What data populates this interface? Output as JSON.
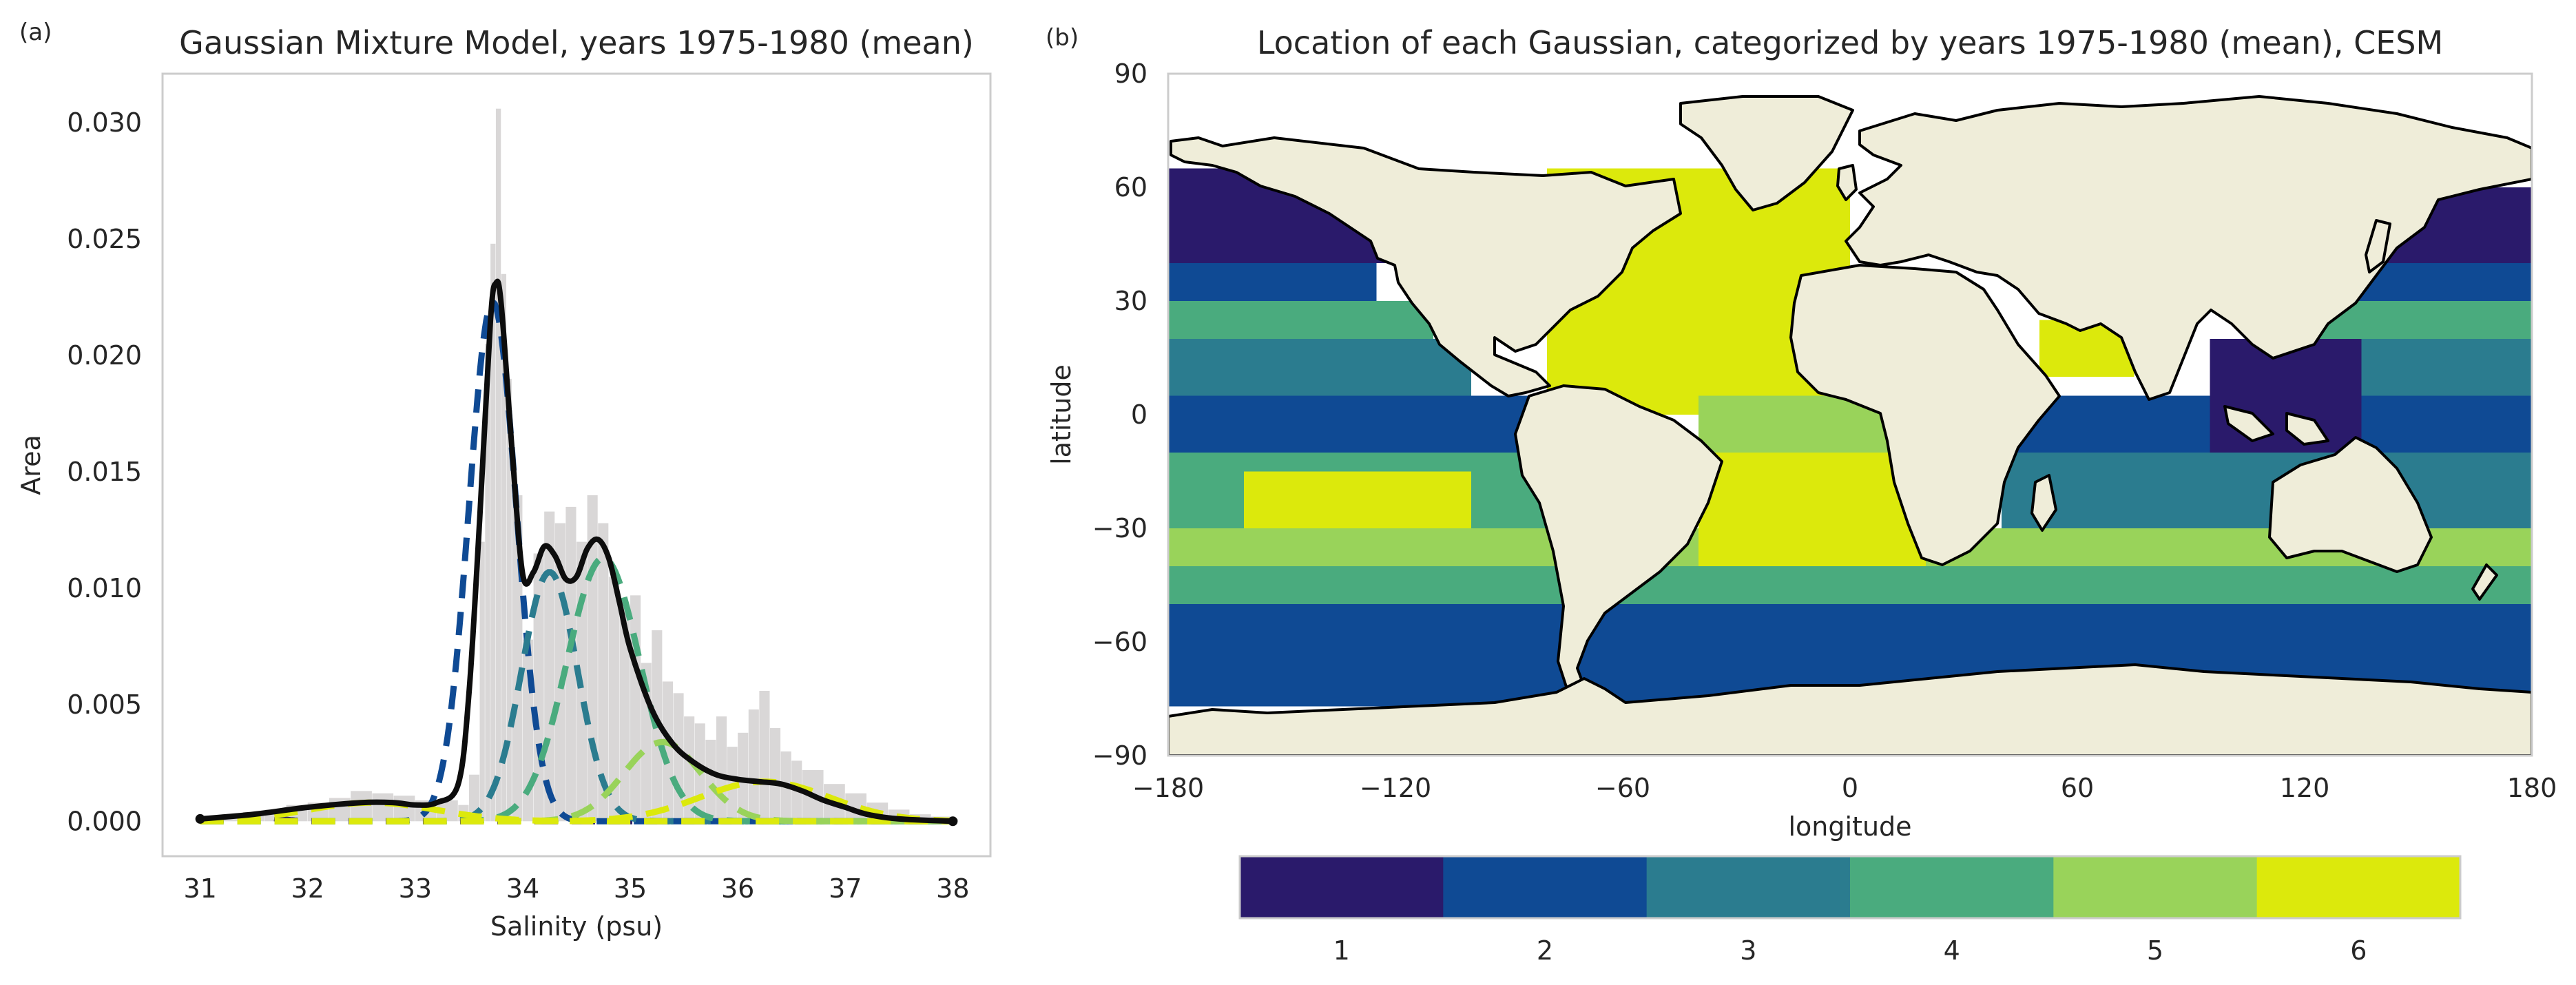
{
  "chart_data": [
    {
      "type": "line",
      "panel_label": "(a)",
      "title": "Gaussian Mixture Model, years 1975-1980 (mean)",
      "xlabel": "Salinity (psu)",
      "ylabel": "Area",
      "xlim": [
        30.65,
        38.35
      ],
      "ylim": [
        -0.0015,
        0.0321
      ],
      "xticks": [
        31,
        32,
        33,
        34,
        35,
        36,
        37,
        38
      ],
      "yticks": [
        0.0,
        0.005,
        0.01,
        0.015,
        0.02,
        0.025,
        0.03
      ],
      "ytick_labels": [
        "0.000",
        "0.005",
        "0.010",
        "0.015",
        "0.020",
        "0.025",
        "0.030"
      ],
      "grid": false,
      "histogram": {
        "color": "#d9d7d7",
        "x": [
          31.0,
          31.2,
          31.4,
          31.6,
          31.8,
          32.0,
          32.2,
          32.4,
          32.6,
          32.8,
          33.0,
          33.2,
          33.4,
          33.5,
          33.6,
          33.65,
          33.7,
          33.75,
          33.8,
          33.85,
          33.9,
          34.0,
          34.1,
          34.2,
          34.3,
          34.4,
          34.5,
          34.6,
          34.7,
          34.8,
          34.9,
          35.0,
          35.1,
          35.2,
          35.3,
          35.4,
          35.5,
          35.6,
          35.7,
          35.8,
          35.9,
          36.0,
          36.1,
          36.2,
          36.3,
          36.4,
          36.5,
          36.6,
          36.8,
          37.0,
          37.2,
          37.4,
          37.6,
          37.8,
          38.0
        ],
        "values": [
          0.0002,
          0.0003,
          0.0004,
          0.0005,
          0.0007,
          0.0008,
          0.001,
          0.0013,
          0.0012,
          0.0011,
          0.0009,
          0.0009,
          0.0007,
          0.002,
          0.012,
          0.0205,
          0.0248,
          0.0306,
          0.0235,
          0.019,
          0.014,
          0.0078,
          0.0115,
          0.0133,
          0.0128,
          0.0135,
          0.012,
          0.014,
          0.0128,
          0.0105,
          0.0092,
          0.0097,
          0.0068,
          0.0082,
          0.006,
          0.0055,
          0.0045,
          0.0042,
          0.0035,
          0.0045,
          0.0032,
          0.0038,
          0.0048,
          0.0056,
          0.004,
          0.003,
          0.0026,
          0.0022,
          0.0016,
          0.0012,
          0.0008,
          0.0005,
          0.0003,
          0.0002,
          0.0001
        ]
      },
      "components": [
        {
          "id": 1,
          "color": "#2a1a6b",
          "mean": 31.5,
          "sigma": 0.2,
          "peak": 0.0002
        },
        {
          "id": 2,
          "color": "#0f4a94",
          "mean": 33.72,
          "sigma": 0.22,
          "peak": 0.0223
        },
        {
          "id": 3,
          "color": "#2b7c8f",
          "mean": 34.25,
          "sigma": 0.26,
          "peak": 0.0107
        },
        {
          "id": 4,
          "color": "#4aab7e",
          "mean": 34.75,
          "sigma": 0.34,
          "peak": 0.0113
        },
        {
          "id": 5,
          "color": "#99d35a",
          "mean": 35.3,
          "sigma": 0.36,
          "peak": 0.0034
        },
        {
          "id": 6,
          "color": "#dce90c",
          "mean": 36.25,
          "sigma": 0.6,
          "peak": 0.0017
        },
        {
          "id": 7,
          "color": "#dce90c",
          "mean": 32.6,
          "sigma": 0.6,
          "peak": 0.0008
        }
      ],
      "total": {
        "color": "#0d0d0d",
        "x": [
          31.0,
          31.5,
          32.0,
          32.5,
          32.8,
          33.0,
          33.2,
          33.4,
          33.5,
          33.6,
          33.7,
          33.75,
          33.8,
          33.9,
          34.0,
          34.1,
          34.2,
          34.3,
          34.4,
          34.5,
          34.6,
          34.7,
          34.8,
          34.9,
          35.0,
          35.2,
          35.4,
          35.6,
          35.8,
          36.0,
          36.2,
          36.4,
          36.6,
          36.8,
          37.0,
          37.2,
          37.5,
          38.0
        ],
        "values": [
          0.0001,
          0.0003,
          0.0006,
          0.0008,
          0.0008,
          0.0007,
          0.0008,
          0.0016,
          0.0055,
          0.013,
          0.0215,
          0.0231,
          0.0222,
          0.016,
          0.0106,
          0.0107,
          0.0118,
          0.0114,
          0.0104,
          0.0105,
          0.0117,
          0.0121,
          0.0113,
          0.0094,
          0.0074,
          0.0048,
          0.0033,
          0.0025,
          0.002,
          0.0018,
          0.0017,
          0.0016,
          0.0013,
          0.0009,
          0.0006,
          0.0003,
          0.0001,
          0.0
        ]
      }
    },
    {
      "type": "heatmap",
      "panel_label": "(b)",
      "title": "Location of each Gaussian, categorized by years 1975-1980 (mean), CESM",
      "xlabel": "longitude",
      "ylabel": "latitude",
      "xlim": [
        -180,
        180
      ],
      "ylim": [
        -90,
        90
      ],
      "xticks": [
        -180,
        -120,
        -60,
        0,
        60,
        120,
        180
      ],
      "yticks": [
        -90,
        -60,
        -30,
        0,
        30,
        60,
        90
      ],
      "colorbar": {
        "orientation": "horizontal",
        "labels": [
          "1",
          "2",
          "3",
          "4",
          "5",
          "6"
        ],
        "colors": [
          "#2a1a6b",
          "#0f4a94",
          "#2b7c8f",
          "#4aab7e",
          "#99d35a",
          "#dce90c"
        ]
      },
      "land_color": "#efedd9",
      "category_bands": [
        {
          "lat_range": [
            60,
            65
          ],
          "lon_range": [
            -180,
            -110
          ],
          "category": 1
        },
        {
          "lat_range": [
            40,
            60
          ],
          "lon_range": [
            -180,
            -120
          ],
          "category": 1
        },
        {
          "lat_range": [
            40,
            60
          ],
          "lon_range": [
            140,
            180
          ],
          "category": 1
        },
        {
          "lat_range": [
            30,
            40
          ],
          "lon_range": [
            -180,
            -125
          ],
          "category": 2
        },
        {
          "lat_range": [
            30,
            40
          ],
          "lon_range": [
            130,
            180
          ],
          "category": 2
        },
        {
          "lat_range": [
            20,
            30
          ],
          "lon_range": [
            -180,
            -110
          ],
          "category": 4
        },
        {
          "lat_range": [
            20,
            30
          ],
          "lon_range": [
            120,
            180
          ],
          "category": 4
        },
        {
          "lat_range": [
            5,
            20
          ],
          "lon_range": [
            -180,
            -100
          ],
          "category": 3
        },
        {
          "lat_range": [
            5,
            20
          ],
          "lon_range": [
            120,
            180
          ],
          "category": 3
        },
        {
          "lat_range": [
            -10,
            5
          ],
          "lon_range": [
            -180,
            -85
          ],
          "category": 2
        },
        {
          "lat_range": [
            -10,
            5
          ],
          "lon_range": [
            40,
            180
          ],
          "category": 2
        },
        {
          "lat_range": [
            -30,
            -10
          ],
          "lon_range": [
            -180,
            -75
          ],
          "category": 4
        },
        {
          "lat_range": [
            -30,
            -10
          ],
          "lon_range": [
            40,
            180
          ],
          "category": 3
        },
        {
          "lat_range": [
            -35,
            -15
          ],
          "lon_range": [
            -160,
            -100
          ],
          "category": 6
        },
        {
          "lat_range": [
            -40,
            -30
          ],
          "lon_range": [
            -180,
            180
          ],
          "category": 5
        },
        {
          "lat_range": [
            -50,
            -40
          ],
          "lon_range": [
            -180,
            180
          ],
          "category": 4
        },
        {
          "lat_range": [
            -77,
            -50
          ],
          "lon_range": [
            -180,
            180
          ],
          "category": 2
        },
        {
          "lat_range": [
            0,
            65
          ],
          "lon_range": [
            -80,
            0
          ],
          "category": 6
        },
        {
          "lat_range": [
            -10,
            5
          ],
          "lon_range": [
            -40,
            10
          ],
          "category": 5
        },
        {
          "lat_range": [
            -40,
            -10
          ],
          "lon_range": [
            -40,
            20
          ],
          "category": 6
        },
        {
          "lat_range": [
            10,
            25
          ],
          "lon_range": [
            50,
            75
          ],
          "category": 6
        },
        {
          "lat_range": [
            -10,
            20
          ],
          "lon_range": [
            95,
            135
          ],
          "category": 1
        }
      ]
    }
  ]
}
